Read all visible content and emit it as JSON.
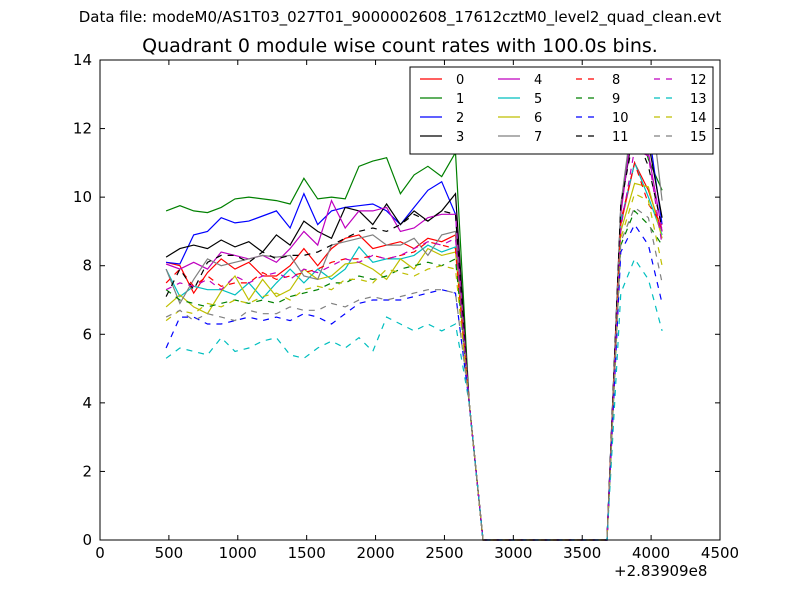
{
  "suptitle": "Data file: modeM0/AS1T03_027T01_9000002608_17612cztM0_level2_quad_clean.evt",
  "chart_data": {
    "type": "line",
    "title": "Quadrant 0 module wise count rates with 100.0s bins.",
    "xlabel": "",
    "ylabel": "",
    "x_offset_label": "+2.83909e8",
    "xlim": [
      0,
      4500
    ],
    "ylim": [
      0,
      14
    ],
    "xticks": [
      "0",
      "500",
      "1000",
      "1500",
      "2000",
      "2500",
      "3000",
      "3500",
      "4000",
      "4500"
    ],
    "yticks": [
      "0",
      "2",
      "4",
      "6",
      "8",
      "10",
      "12",
      "14"
    ],
    "grid": false,
    "legend": {
      "placement": "top-right",
      "columns": 4
    },
    "x": [
      480,
      580,
      680,
      780,
      880,
      980,
      1080,
      1180,
      1280,
      1380,
      1480,
      1580,
      1680,
      1780,
      1880,
      1980,
      2080,
      2180,
      2280,
      2380,
      2480,
      2580,
      2680,
      2780,
      2880,
      2980,
      3080,
      3180,
      3280,
      3380,
      3480,
      3580,
      3680,
      3780,
      3880,
      3980,
      4080
    ],
    "series": [
      {
        "name": "0",
        "style": "solid",
        "color": "#ff0000",
        "values": [
          8.1,
          8.0,
          7.2,
          7.8,
          8.2,
          7.9,
          8.1,
          7.7,
          7.7,
          8.0,
          8.5,
          8.0,
          8.5,
          8.8,
          8.9,
          8.5,
          8.6,
          8.7,
          8.5,
          8.8,
          8.7,
          8.9,
          4.0,
          0,
          0,
          0,
          0,
          0,
          0,
          0,
          0,
          0,
          0,
          9.2,
          11.0,
          10.2,
          9.0
        ]
      },
      {
        "name": "1",
        "style": "solid",
        "color": "#008000",
        "values": [
          9.6,
          9.75,
          9.6,
          9.55,
          9.7,
          9.95,
          10.0,
          9.95,
          9.9,
          9.8,
          10.55,
          9.95,
          10.0,
          9.95,
          10.9,
          11.05,
          11.15,
          10.1,
          10.65,
          10.9,
          10.6,
          11.3,
          4.0,
          0,
          0,
          0,
          0,
          0,
          0,
          0,
          0,
          0,
          0,
          9.6,
          12.5,
          11.1,
          10.2
        ]
      },
      {
        "name": "2",
        "style": "solid",
        "color": "#0000ff",
        "values": [
          8.1,
          8.05,
          8.9,
          9.0,
          9.4,
          9.25,
          9.3,
          9.45,
          9.6,
          9.1,
          10.1,
          9.2,
          9.6,
          9.7,
          9.75,
          9.8,
          9.6,
          9.2,
          9.7,
          10.2,
          10.45,
          9.5,
          4.0,
          0,
          0,
          0,
          0,
          0,
          0,
          0,
          0,
          0,
          0,
          9.7,
          12.5,
          12.0,
          9.2
        ]
      },
      {
        "name": "3",
        "style": "solid",
        "color": "#000000",
        "values": [
          8.25,
          8.5,
          8.6,
          8.5,
          8.75,
          8.55,
          8.7,
          8.4,
          8.9,
          8.6,
          9.3,
          9.0,
          8.8,
          9.7,
          9.6,
          9.2,
          9.8,
          9.2,
          9.6,
          9.3,
          9.6,
          10.1,
          4.0,
          0,
          0,
          0,
          0,
          0,
          0,
          0,
          0,
          0,
          0,
          9.7,
          12.2,
          11.6,
          9.4
        ]
      },
      {
        "name": "4",
        "style": "solid",
        "color": "#bf00bf",
        "values": [
          8.05,
          7.9,
          8.1,
          7.9,
          8.4,
          8.3,
          8.2,
          8.3,
          8.1,
          8.5,
          9.0,
          8.6,
          9.9,
          9.1,
          9.6,
          9.6,
          9.7,
          9.0,
          9.1,
          9.4,
          9.5,
          9.5,
          4.0,
          0,
          0,
          0,
          0,
          0,
          0,
          0,
          0,
          0,
          0,
          9.5,
          12.6,
          11.3,
          9.0
        ]
      },
      {
        "name": "5",
        "style": "solid",
        "color": "#00bfbf",
        "values": [
          7.9,
          7.1,
          7.4,
          7.3,
          7.3,
          7.15,
          7.5,
          7.05,
          7.5,
          7.9,
          7.5,
          7.9,
          7.6,
          7.9,
          8.55,
          8.1,
          8.2,
          8.2,
          8.3,
          8.6,
          8.4,
          8.55,
          4.0,
          0,
          0,
          0,
          0,
          0,
          0,
          0,
          0,
          0,
          0,
          9.3,
          11.0,
          10.0,
          8.9
        ]
      },
      {
        "name": "6",
        "style": "solid",
        "color": "#bfbf00",
        "values": [
          6.8,
          7.15,
          6.8,
          6.6,
          7.25,
          7.7,
          7.0,
          7.6,
          7.1,
          7.3,
          7.9,
          7.6,
          7.7,
          8.05,
          8.1,
          7.9,
          7.6,
          8.2,
          7.9,
          8.5,
          8.3,
          8.4,
          4.0,
          0,
          0,
          0,
          0,
          0,
          0,
          0,
          0,
          0,
          0,
          9.0,
          10.4,
          10.3,
          8.8
        ]
      },
      {
        "name": "7",
        "style": "solid",
        "color": "#808080",
        "values": [
          7.9,
          6.9,
          7.6,
          8.2,
          8.0,
          8.1,
          8.2,
          8.3,
          8.25,
          8.3,
          7.7,
          7.6,
          8.6,
          8.7,
          8.8,
          8.9,
          8.6,
          8.6,
          8.8,
          8.3,
          8.9,
          9.0,
          4.0,
          0,
          0,
          0,
          0,
          0,
          0,
          0,
          0,
          0,
          0,
          9.8,
          12.8,
          13.3,
          9.9
        ]
      },
      {
        "name": "8",
        "style": "dashed",
        "color": "#ff0000",
        "values": [
          7.5,
          7.9,
          7.4,
          7.7,
          7.4,
          7.5,
          7.5,
          7.8,
          7.6,
          7.7,
          7.8,
          7.9,
          8.1,
          8.2,
          8.2,
          8.3,
          8.2,
          8.3,
          8.4,
          8.7,
          8.6,
          8.5,
          4.0,
          0,
          0,
          0,
          0,
          0,
          0,
          0,
          0,
          0,
          0,
          9.3,
          11.0,
          9.8,
          9.2
        ]
      },
      {
        "name": "9",
        "style": "dashed",
        "color": "#008000",
        "values": [
          7.3,
          7.0,
          6.9,
          6.8,
          6.9,
          7.0,
          6.9,
          7.0,
          6.9,
          7.1,
          7.2,
          7.3,
          7.5,
          7.5,
          7.7,
          7.6,
          7.7,
          7.9,
          8.0,
          8.1,
          8.0,
          8.2,
          4.0,
          0,
          0,
          0,
          0,
          0,
          0,
          0,
          0,
          0,
          0,
          8.6,
          9.6,
          9.2,
          8.6
        ]
      },
      {
        "name": "10",
        "style": "dashed",
        "color": "#0000ff",
        "values": [
          5.6,
          6.5,
          6.5,
          6.3,
          6.3,
          6.4,
          6.5,
          6.4,
          6.5,
          6.4,
          6.6,
          6.5,
          6.3,
          6.6,
          6.9,
          7.0,
          7.0,
          7.0,
          7.1,
          7.2,
          7.3,
          7.2,
          4.0,
          0,
          0,
          0,
          0,
          0,
          0,
          0,
          0,
          0,
          0,
          8.4,
          9.2,
          8.6,
          6.9
        ]
      },
      {
        "name": "11",
        "style": "dashed",
        "color": "#000000",
        "values": [
          7.1,
          7.9,
          7.3,
          8.1,
          8.3,
          8.3,
          8.1,
          8.4,
          8.2,
          8.3,
          8.3,
          8.4,
          8.6,
          8.8,
          9.0,
          9.1,
          9.0,
          9.2,
          9.5,
          9.3,
          9.6,
          9.5,
          4.0,
          0,
          0,
          0,
          0,
          0,
          0,
          0,
          0,
          0,
          0,
          9.8,
          11.9,
          10.9,
          9.1
        ]
      },
      {
        "name": "12",
        "style": "dashed",
        "color": "#bf00bf",
        "values": [
          7.3,
          7.5,
          7.4,
          7.6,
          7.3,
          7.7,
          7.5,
          7.7,
          7.8,
          7.6,
          7.9,
          7.8,
          8.0,
          8.2,
          8.1,
          8.3,
          8.2,
          8.3,
          8.5,
          8.7,
          8.6,
          8.8,
          4.0,
          0,
          0,
          0,
          0,
          0,
          0,
          0,
          0,
          0,
          0,
          9.1,
          11.4,
          11.2,
          8.6
        ]
      },
      {
        "name": "13",
        "style": "dashed",
        "color": "#00bfbf",
        "values": [
          5.3,
          5.6,
          5.5,
          5.4,
          5.9,
          5.5,
          5.6,
          5.8,
          5.9,
          5.4,
          5.3,
          5.6,
          5.8,
          5.6,
          5.9,
          5.5,
          6.5,
          6.3,
          6.1,
          6.3,
          6.1,
          6.3,
          4.0,
          0,
          0,
          0,
          0,
          0,
          0,
          0,
          0,
          0,
          0,
          7.2,
          8.2,
          7.6,
          6.1
        ]
      },
      {
        "name": "14",
        "style": "dashed",
        "color": "#bfbf00",
        "values": [
          6.4,
          6.7,
          6.6,
          6.9,
          6.8,
          7.0,
          6.9,
          7.1,
          7.2,
          7.0,
          7.3,
          7.4,
          7.3,
          7.6,
          7.6,
          7.5,
          7.9,
          7.8,
          7.7,
          7.9,
          8.0,
          7.9,
          4.0,
          0,
          0,
          0,
          0,
          0,
          0,
          0,
          0,
          0,
          0,
          8.8,
          10.1,
          9.9,
          8.0
        ]
      },
      {
        "name": "15",
        "style": "dashed",
        "color": "#808080",
        "values": [
          6.5,
          6.7,
          6.4,
          6.6,
          6.5,
          6.4,
          6.7,
          6.6,
          6.6,
          6.8,
          6.7,
          6.7,
          6.9,
          6.8,
          7.0,
          7.1,
          7.0,
          7.1,
          7.2,
          7.3,
          7.3,
          7.2,
          4.0,
          0,
          0,
          0,
          0,
          0,
          0,
          0,
          0,
          0,
          0,
          8.7,
          9.7,
          9.4,
          7.5
        ]
      }
    ]
  }
}
